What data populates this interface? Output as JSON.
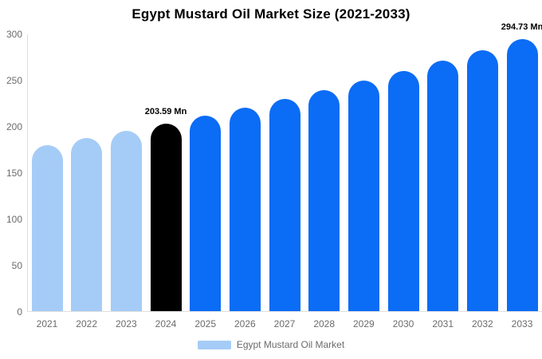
{
  "title": "Egypt Mustard Oil Market Size (2021-2033)",
  "legend": {
    "label": "Egypt Mustard Oil Market"
  },
  "colors": {
    "historical": "#a5ccf7",
    "highlight": "#000000",
    "forecast": "#0b6cf5",
    "axis_line": "#dddddd",
    "tick_text": "#6b6b6b",
    "title_text": "#000000",
    "data_label_text": "#000000"
  },
  "chart_data": {
    "type": "bar",
    "title": "Egypt Mustard Oil Market Size (2021-2033)",
    "series_name": "Egypt Mustard Oil Market",
    "unit": "Mn",
    "categories": [
      "2021",
      "2022",
      "2023",
      "2024",
      "2025",
      "2026",
      "2027",
      "2028",
      "2029",
      "2030",
      "2031",
      "2032",
      "2033"
    ],
    "values": [
      179.9,
      187.4,
      195.2,
      203.59,
      212.1,
      221.0,
      230.3,
      239.9,
      249.9,
      260.4,
      271.3,
      282.6,
      294.73
    ],
    "bar_styles": [
      "historical",
      "historical",
      "historical",
      "highlight",
      "forecast",
      "forecast",
      "forecast",
      "forecast",
      "forecast",
      "forecast",
      "forecast",
      "forecast",
      "forecast"
    ],
    "data_labels": [
      {
        "index": 3,
        "text": "203.59 Mn"
      },
      {
        "index": 12,
        "text": "294.73 Mn"
      }
    ],
    "xlabel": "",
    "ylabel": "",
    "ylim": [
      0,
      300
    ],
    "yticks": [
      0,
      50,
      100,
      150,
      200,
      250,
      300
    ],
    "grid": false,
    "legend_position": "bottom"
  }
}
